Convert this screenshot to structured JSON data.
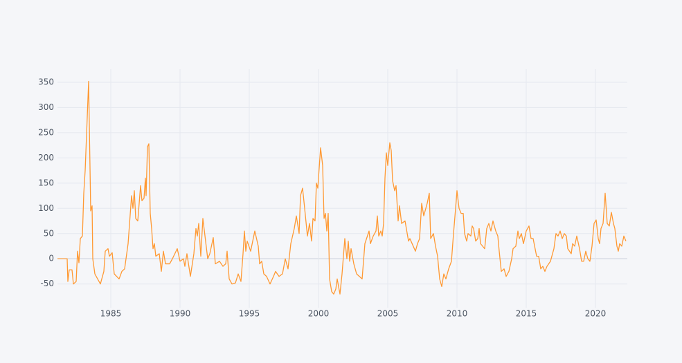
{
  "chart_data": {
    "type": "line",
    "x": [
      1981.15,
      1981.85,
      1981.9,
      1982.0,
      1982.2,
      1982.3,
      1982.5,
      1982.6,
      1982.7,
      1982.8,
      1982.95,
      1983.05,
      1983.15,
      1983.4,
      1983.55,
      1983.65,
      1983.7,
      1983.85,
      1984.05,
      1984.25,
      1984.5,
      1984.6,
      1984.8,
      1984.9,
      1985.1,
      1985.25,
      1985.6,
      1985.8,
      1986.0,
      1986.25,
      1986.5,
      1986.6,
      1986.7,
      1986.8,
      1986.95,
      1987.15,
      1987.25,
      1987.4,
      1987.5,
      1987.55,
      1987.65,
      1987.75,
      1987.85,
      1987.95,
      1988.05,
      1988.15,
      1988.25,
      1988.5,
      1988.65,
      1988.8,
      1988.95,
      1989.25,
      1989.45,
      1989.8,
      1990.0,
      1990.25,
      1990.35,
      1990.5,
      1990.75,
      1991.0,
      1991.15,
      1991.25,
      1991.35,
      1991.5,
      1991.65,
      1992.0,
      1992.15,
      1992.4,
      1992.55,
      1992.85,
      1993.1,
      1993.3,
      1993.4,
      1993.55,
      1993.75,
      1994.0,
      1994.2,
      1994.4,
      1994.55,
      1994.65,
      1994.75,
      1994.85,
      1995.1,
      1995.4,
      1995.65,
      1995.75,
      1995.9,
      1996.05,
      1996.25,
      1996.5,
      1996.75,
      1996.9,
      1997.15,
      1997.4,
      1997.6,
      1997.8,
      1998.0,
      1998.25,
      1998.4,
      1998.6,
      1998.7,
      1998.85,
      1999.0,
      1999.2,
      1999.35,
      1999.5,
      1999.6,
      1999.75,
      1999.85,
      1999.95,
      2000.05,
      2000.15,
      2000.3,
      2000.4,
      2000.5,
      2000.6,
      2000.7,
      2000.8,
      2000.95,
      2001.1,
      2001.25,
      2001.35,
      2001.45,
      2001.55,
      2001.7,
      2001.9,
      2002.05,
      2002.15,
      2002.25,
      2002.35,
      2002.55,
      2002.75,
      2002.95,
      2003.15,
      2003.35,
      2003.65,
      2003.75,
      2003.95,
      2004.15,
      2004.25,
      2004.35,
      2004.5,
      2004.6,
      2004.7,
      2004.8,
      2004.9,
      2005.0,
      2005.15,
      2005.25,
      2005.35,
      2005.5,
      2005.6,
      2005.75,
      2005.85,
      2006.0,
      2006.25,
      2006.5,
      2006.6,
      2007.0,
      2007.15,
      2007.3,
      2007.45,
      2007.6,
      2007.7,
      2007.85,
      2008.0,
      2008.1,
      2008.3,
      2008.45,
      2008.6,
      2008.75,
      2008.9,
      2009.05,
      2009.2,
      2009.4,
      2009.6,
      2009.75,
      2009.9,
      2010.0,
      2010.15,
      2010.3,
      2010.45,
      2010.55,
      2010.7,
      2010.8,
      2011.0,
      2011.1,
      2011.2,
      2011.35,
      2011.5,
      2011.6,
      2011.7,
      2011.85,
      2012.0,
      2012.15,
      2012.3,
      2012.45,
      2012.6,
      2012.8,
      2012.95,
      2013.05,
      2013.2,
      2013.4,
      2013.55,
      2013.75,
      2013.95,
      2014.05,
      2014.25,
      2014.4,
      2014.5,
      2014.65,
      2014.8,
      2015.0,
      2015.2,
      2015.35,
      2015.5,
      2015.75,
      2015.9,
      2016.05,
      2016.2,
      2016.35,
      2016.5,
      2016.75,
      2017.0,
      2017.15,
      2017.3,
      2017.45,
      2017.6,
      2017.75,
      2017.9,
      2018.0,
      2018.25,
      2018.35,
      2018.5,
      2018.65,
      2018.85,
      2019.0,
      2019.15,
      2019.3,
      2019.45,
      2019.6,
      2019.75,
      2019.9,
      2020.05,
      2020.2,
      2020.3,
      2020.4,
      2020.55,
      2020.7,
      2020.85,
      2021.0,
      2021.15,
      2021.3,
      2021.4,
      2021.55,
      2021.65,
      2021.75,
      2021.9,
      2022.05,
      2022.2
    ],
    "values": [
      0,
      0,
      -45,
      -22,
      -22,
      -50,
      -45,
      15,
      -8,
      40,
      45,
      130,
      175,
      352,
      95,
      105,
      0,
      -30,
      -40,
      -50,
      -25,
      15,
      20,
      5,
      12,
      -30,
      -40,
      -25,
      -20,
      30,
      125,
      100,
      135,
      80,
      75,
      145,
      115,
      120,
      160,
      125,
      222,
      228,
      90,
      60,
      20,
      30,
      5,
      10,
      -25,
      15,
      -10,
      -10,
      0,
      20,
      -5,
      0,
      -15,
      10,
      -35,
      10,
      60,
      45,
      70,
      5,
      80,
      0,
      10,
      42,
      -10,
      -5,
      -15,
      -10,
      15,
      -40,
      -50,
      -48,
      -30,
      -45,
      10,
      55,
      15,
      35,
      15,
      55,
      25,
      -10,
      -5,
      -30,
      -35,
      -50,
      -35,
      -25,
      -35,
      -30,
      0,
      -20,
      30,
      60,
      85,
      50,
      125,
      140,
      100,
      45,
      70,
      35,
      80,
      75,
      150,
      140,
      180,
      220,
      185,
      80,
      90,
      55,
      90,
      -40,
      -65,
      -70,
      -60,
      -40,
      -55,
      -70,
      -30,
      40,
      0,
      35,
      -5,
      20,
      -10,
      -30,
      -35,
      -40,
      30,
      55,
      30,
      45,
      55,
      85,
      45,
      55,
      45,
      70,
      160,
      210,
      185,
      230,
      215,
      155,
      135,
      145,
      75,
      105,
      70,
      75,
      35,
      40,
      15,
      30,
      40,
      110,
      85,
      95,
      110,
      130,
      40,
      50,
      25,
      5,
      -40,
      -55,
      -30,
      -40,
      -20,
      -5,
      50,
      100,
      135,
      100,
      90,
      90,
      50,
      35,
      50,
      45,
      65,
      60,
      35,
      40,
      60,
      30,
      25,
      20,
      60,
      70,
      55,
      75,
      55,
      45,
      15,
      -25,
      -20,
      -35,
      -25,
      0,
      20,
      25,
      55,
      40,
      50,
      30,
      55,
      65,
      40,
      40,
      5,
      5,
      -20,
      -15,
      -25,
      -15,
      -5,
      20,
      50,
      45,
      55,
      40,
      50,
      45,
      20,
      10,
      30,
      25,
      45,
      20,
      -5,
      -5,
      15,
      0,
      -5,
      25,
      70,
      77,
      40,
      30,
      60,
      70,
      130,
      70,
      65,
      92,
      70,
      60,
      25,
      15,
      30,
      25,
      45,
      35
    ],
    "color": "#ff9933",
    "xlim": [
      1981.15,
      2022.3
    ],
    "xticks": [
      1985,
      1990,
      1995,
      2000,
      2005,
      2010,
      2015,
      2020
    ],
    "ylim": [
      -97,
      376
    ],
    "yticks": [
      -50,
      0,
      50,
      100,
      150,
      200,
      250,
      300,
      350
    ],
    "grid": true
  }
}
